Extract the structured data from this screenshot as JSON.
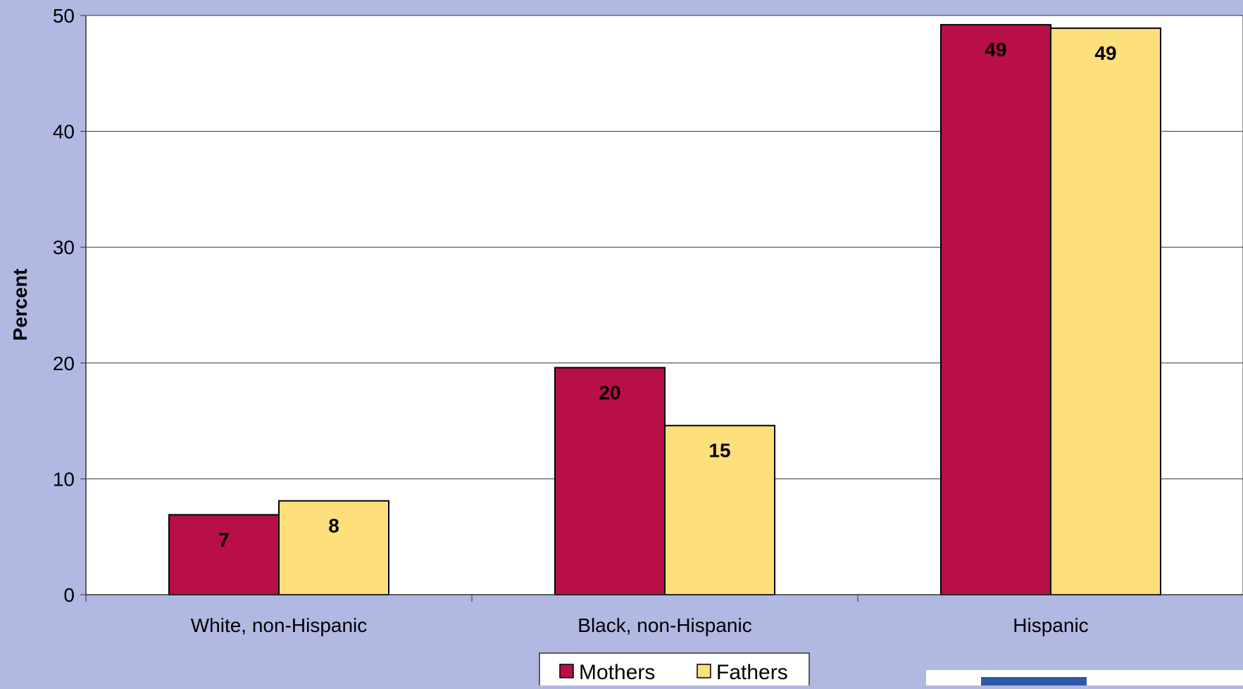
{
  "chart_data": {
    "type": "bar",
    "categories": [
      "White, non-Hispanic",
      "Black, non-Hispanic",
      "Hispanic"
    ],
    "series": [
      {
        "name": "Mothers",
        "values": [
          6.9,
          19.6,
          49.2
        ],
        "labels": [
          "7",
          "20",
          "49"
        ],
        "color": "#b80f47"
      },
      {
        "name": "Fathers",
        "values": [
          8.1,
          14.6,
          48.9
        ],
        "labels": [
          "8",
          "15",
          "49"
        ],
        "color": "#fde07b"
      }
    ],
    "title": "",
    "xlabel": "",
    "ylabel": "Percent",
    "ylim": [
      0,
      50
    ],
    "yticks": [
      0,
      10,
      20,
      30,
      40,
      50
    ],
    "grid": true,
    "legend": "bottom-center",
    "plot_background": "#ffffff",
    "page_background": "#b1b8e2"
  }
}
